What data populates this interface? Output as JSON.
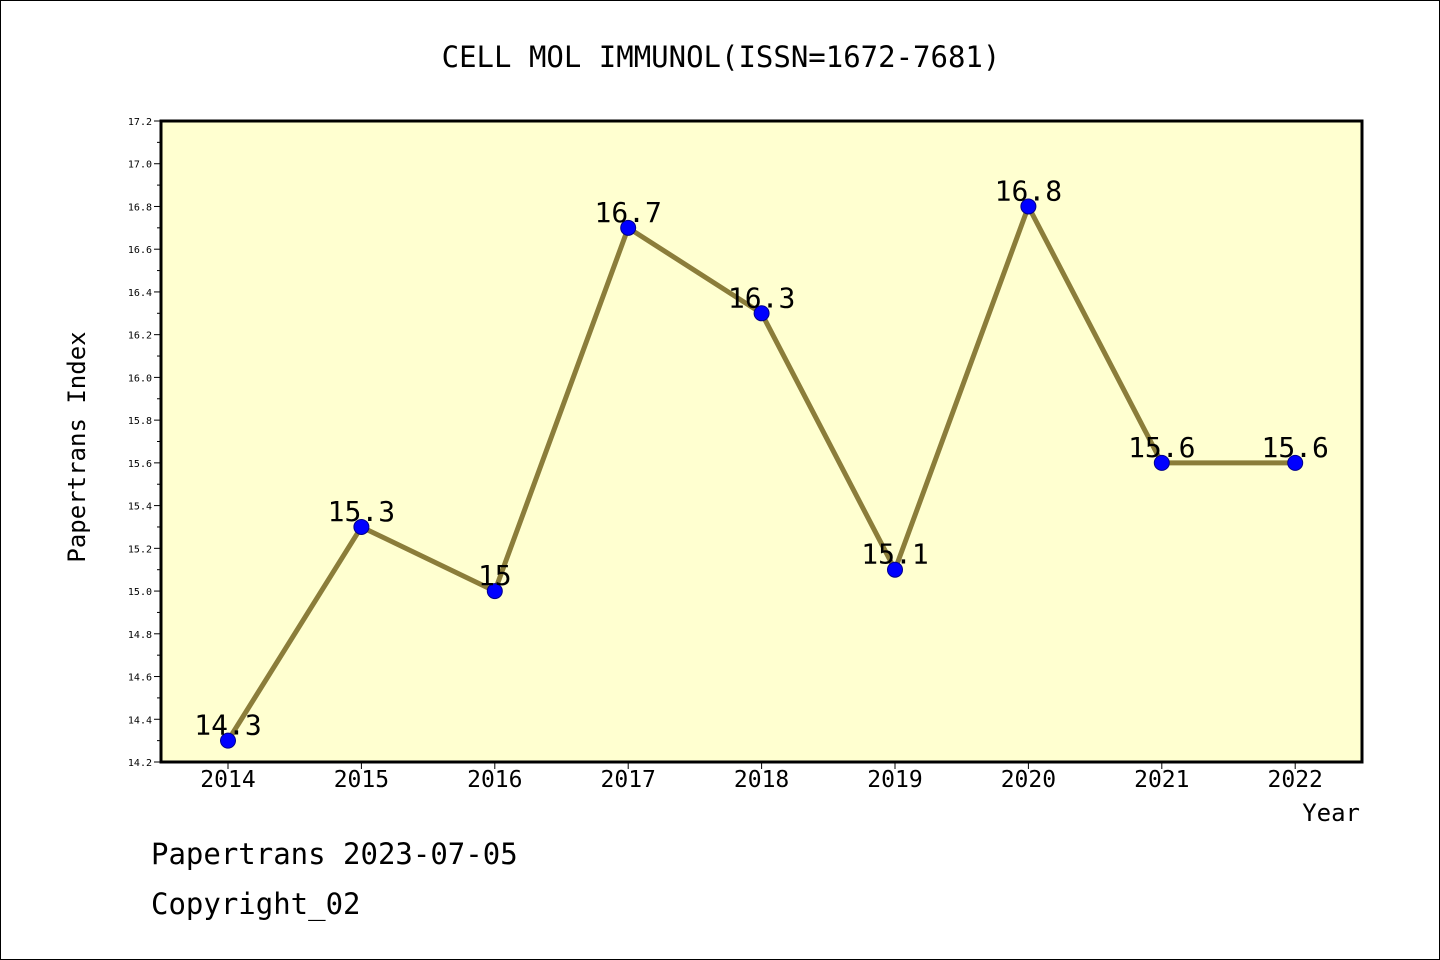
{
  "chart_data": {
    "type": "line",
    "title": "CELL MOL IMMUNOL(ISSN=1672-7681)",
    "xlabel": "Year",
    "ylabel": "Papertrans Index",
    "categories": [
      "2014",
      "2015",
      "2016",
      "2017",
      "2018",
      "2019",
      "2020",
      "2021",
      "2022"
    ],
    "values": [
      14.3,
      15.3,
      15.0,
      16.7,
      16.3,
      15.1,
      16.8,
      15.6,
      15.6
    ],
    "data_labels": [
      "14.3",
      "15.3",
      "15",
      "16.7",
      "16.3",
      "15.1",
      "16.8",
      "15.6",
      "15.6"
    ],
    "ylim": [
      14.2,
      17.2
    ],
    "yticks": [
      "14.2",
      "14.4",
      "14.6",
      "14.8",
      "15.0",
      "15.2",
      "15.4",
      "15.6",
      "15.8",
      "16.0",
      "16.2",
      "16.4",
      "16.6",
      "16.8",
      "17.0",
      "17.2"
    ],
    "grid": false,
    "legend": "none",
    "colors": {
      "plot_background": "#ffffd0",
      "line": "#8b7d3a",
      "marker": "#0000ff"
    }
  },
  "footer": {
    "date_text": "Papertrans 2023-07-05",
    "copyright_text": "Copyright_02"
  }
}
